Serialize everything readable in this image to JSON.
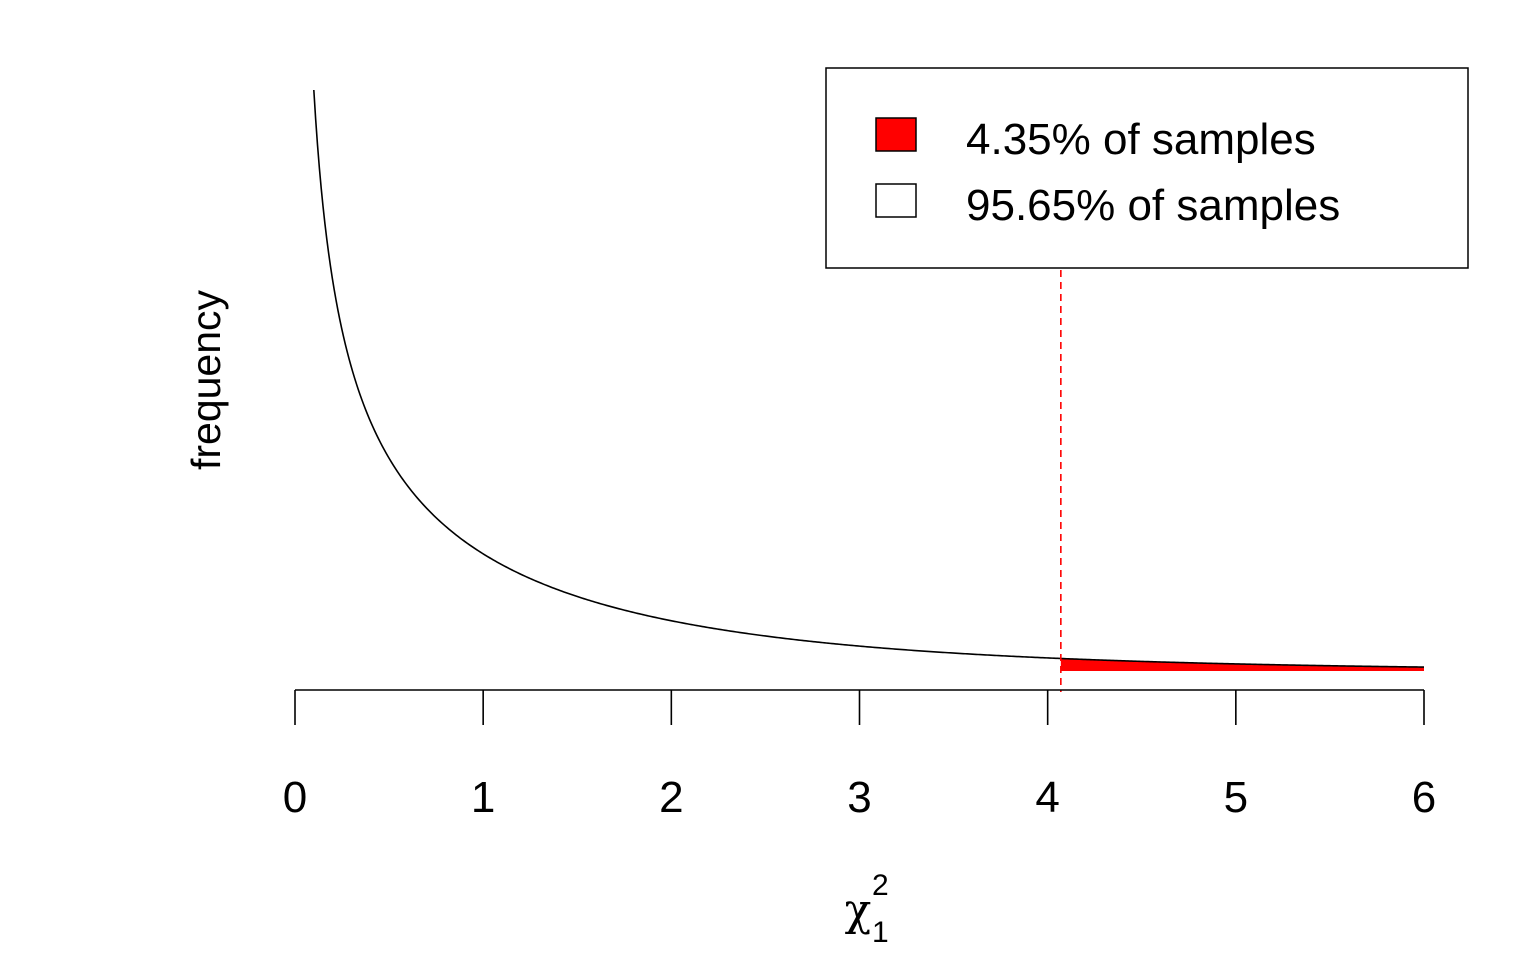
{
  "chart_data": {
    "type": "line",
    "title": "",
    "xlabel": "χ",
    "xlabel_superscript": "2",
    "xlabel_subscript": "1",
    "ylabel": "frequency",
    "xlim": [
      0,
      6
    ],
    "x_ticks": [
      "0",
      "1",
      "2",
      "3",
      "4",
      "5",
      "6"
    ],
    "y_axis_shown": false,
    "grid": false,
    "series": [
      {
        "distribution": "chi-square density, df = 1",
        "x_start": 0.1,
        "x_end": 6,
        "color": "#000000"
      }
    ],
    "critical_value": 4.07,
    "critical_line_color": "#ff0000",
    "shaded_region": {
      "from": 4.07,
      "to": 6,
      "color": "#ff0000"
    },
    "legend": {
      "position": "top-right",
      "entries": [
        {
          "label": "4.35% of samples",
          "fill": "#ff0000"
        },
        {
          "label": "95.65% of samples",
          "fill": "#ffffff"
        }
      ]
    }
  }
}
